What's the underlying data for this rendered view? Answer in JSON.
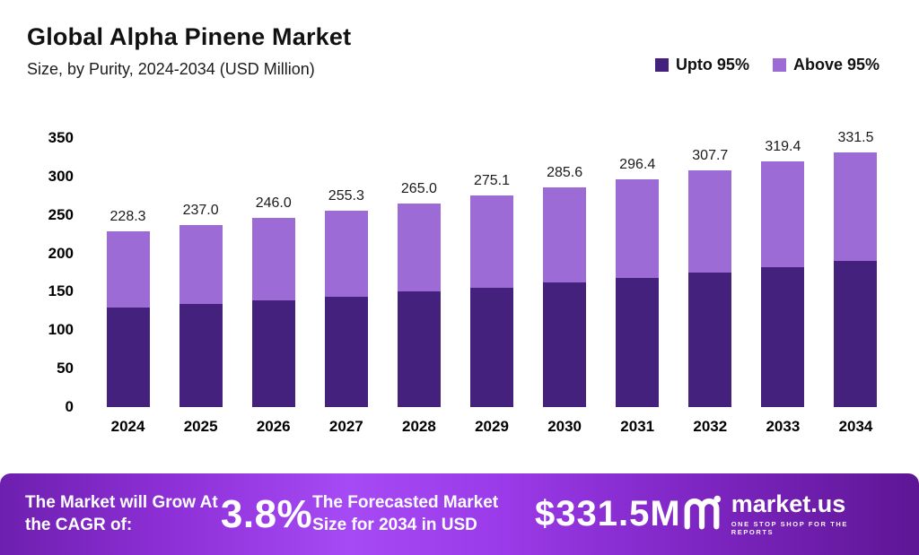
{
  "header": {
    "title": "Global Alpha Pinene Market",
    "subtitle": "Size, by Purity, 2024-2034 (USD Million)"
  },
  "legend": [
    {
      "label": "Upto 95%",
      "color": "#45217e"
    },
    {
      "label": "Above 95%",
      "color": "#9c6bd6"
    }
  ],
  "chart_data": {
    "type": "bar",
    "stacked": true,
    "title": "Global Alpha Pinene Market",
    "subtitle": "Size, by Purity, 2024-2034 (USD Million)",
    "xlabel": "",
    "ylabel": "",
    "ylim": [
      0,
      350
    ],
    "yticks": [
      0,
      50,
      100,
      150,
      200,
      250,
      300,
      350
    ],
    "grid": false,
    "legend_position": "top-right",
    "categories": [
      "2024",
      "2025",
      "2026",
      "2027",
      "2028",
      "2029",
      "2030",
      "2031",
      "2032",
      "2033",
      "2034"
    ],
    "series": [
      {
        "name": "Upto 95%",
        "color": "#45217e",
        "values": [
          130,
          134,
          139,
          144,
          150,
          155,
          162,
          168,
          175,
          182,
          190
        ]
      },
      {
        "name": "Above 95%",
        "color": "#9c6bd6",
        "values": [
          98.3,
          103.0,
          107.0,
          111.3,
          115.0,
          120.1,
          123.6,
          128.4,
          132.7,
          137.4,
          141.5
        ]
      }
    ],
    "totals": [
      228.3,
      237.0,
      246.0,
      255.3,
      265.0,
      275.1,
      285.6,
      296.4,
      307.7,
      319.4,
      331.5
    ],
    "total_labels": [
      "228.3",
      "237.0",
      "246.0",
      "255.3",
      "265.0",
      "275.1",
      "285.6",
      "296.4",
      "307.7",
      "319.4",
      "331.5"
    ]
  },
  "banner": {
    "cagr_label": "The Market will Grow At the CAGR of:",
    "cagr_value": "3.8%",
    "forecast_label": "The Forecasted Market Size for 2034 in USD",
    "forecast_value": "$331.5M",
    "logo_text": "market.us",
    "logo_tagline": "ONE STOP SHOP FOR THE REPORTS"
  }
}
